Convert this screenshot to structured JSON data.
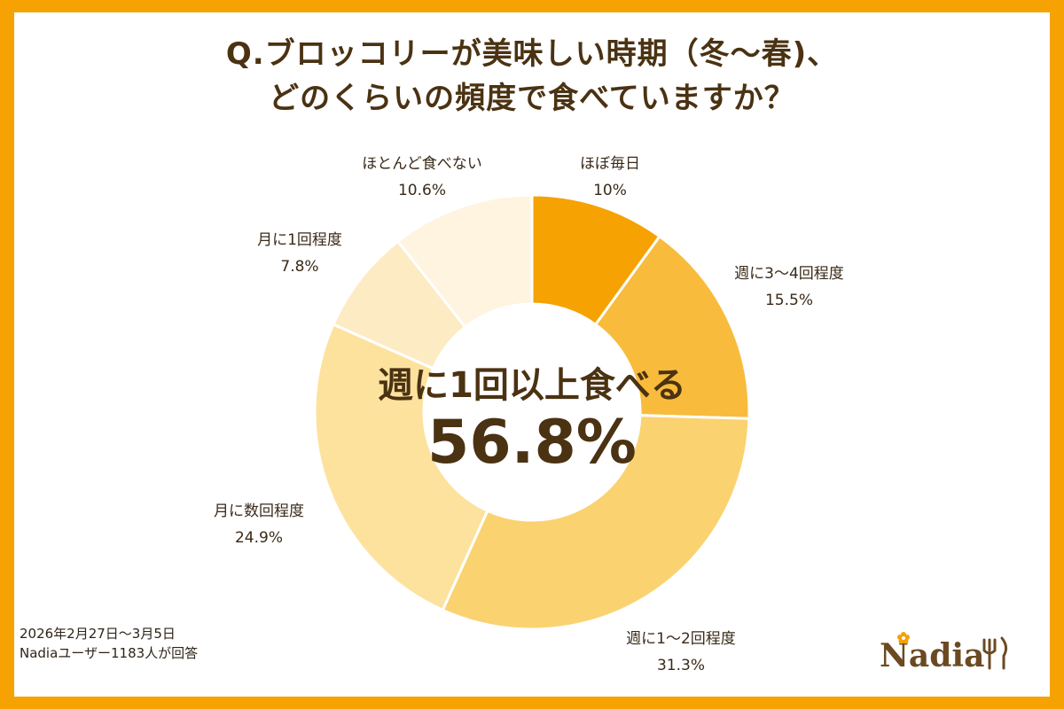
{
  "title": {
    "line1": "Q.ブロッコリーが美味しい時期（冬〜春)、",
    "line2": "どのくらいの頻度で食べていますか？"
  },
  "chart_data": {
    "type": "pie",
    "subtype": "donut",
    "title": "Q.ブロッコリーが美味しい時期（冬〜春)、どのくらいの頻度で食べていますか？",
    "categories": [
      "ほぼ毎日",
      "週に3〜4回程度",
      "週に1〜2回程度",
      "月に数回程度",
      "月に1回程度",
      "ほとんど食べない"
    ],
    "values": [
      10,
      15.5,
      31.3,
      24.9,
      7.8,
      10.6
    ],
    "value_labels": [
      "10%",
      "15.5%",
      "31.3%",
      "24.9%",
      "7.8%",
      "10.6%"
    ],
    "colors": [
      "#F5A202",
      "#F8BB3C",
      "#FBD270",
      "#FDE29E",
      "#FDEBC4",
      "#FEF4E0"
    ],
    "center_label": "週に1回以上食べる",
    "center_value": "56.8%"
  },
  "footer": {
    "period": "2026年2月27日〜3月5日",
    "respondents": "Nadiaユーザー1183人が回答"
  },
  "logo": {
    "text": "Nadia",
    "accent_color": "#F5A202",
    "text_color": "#6B4A22"
  }
}
